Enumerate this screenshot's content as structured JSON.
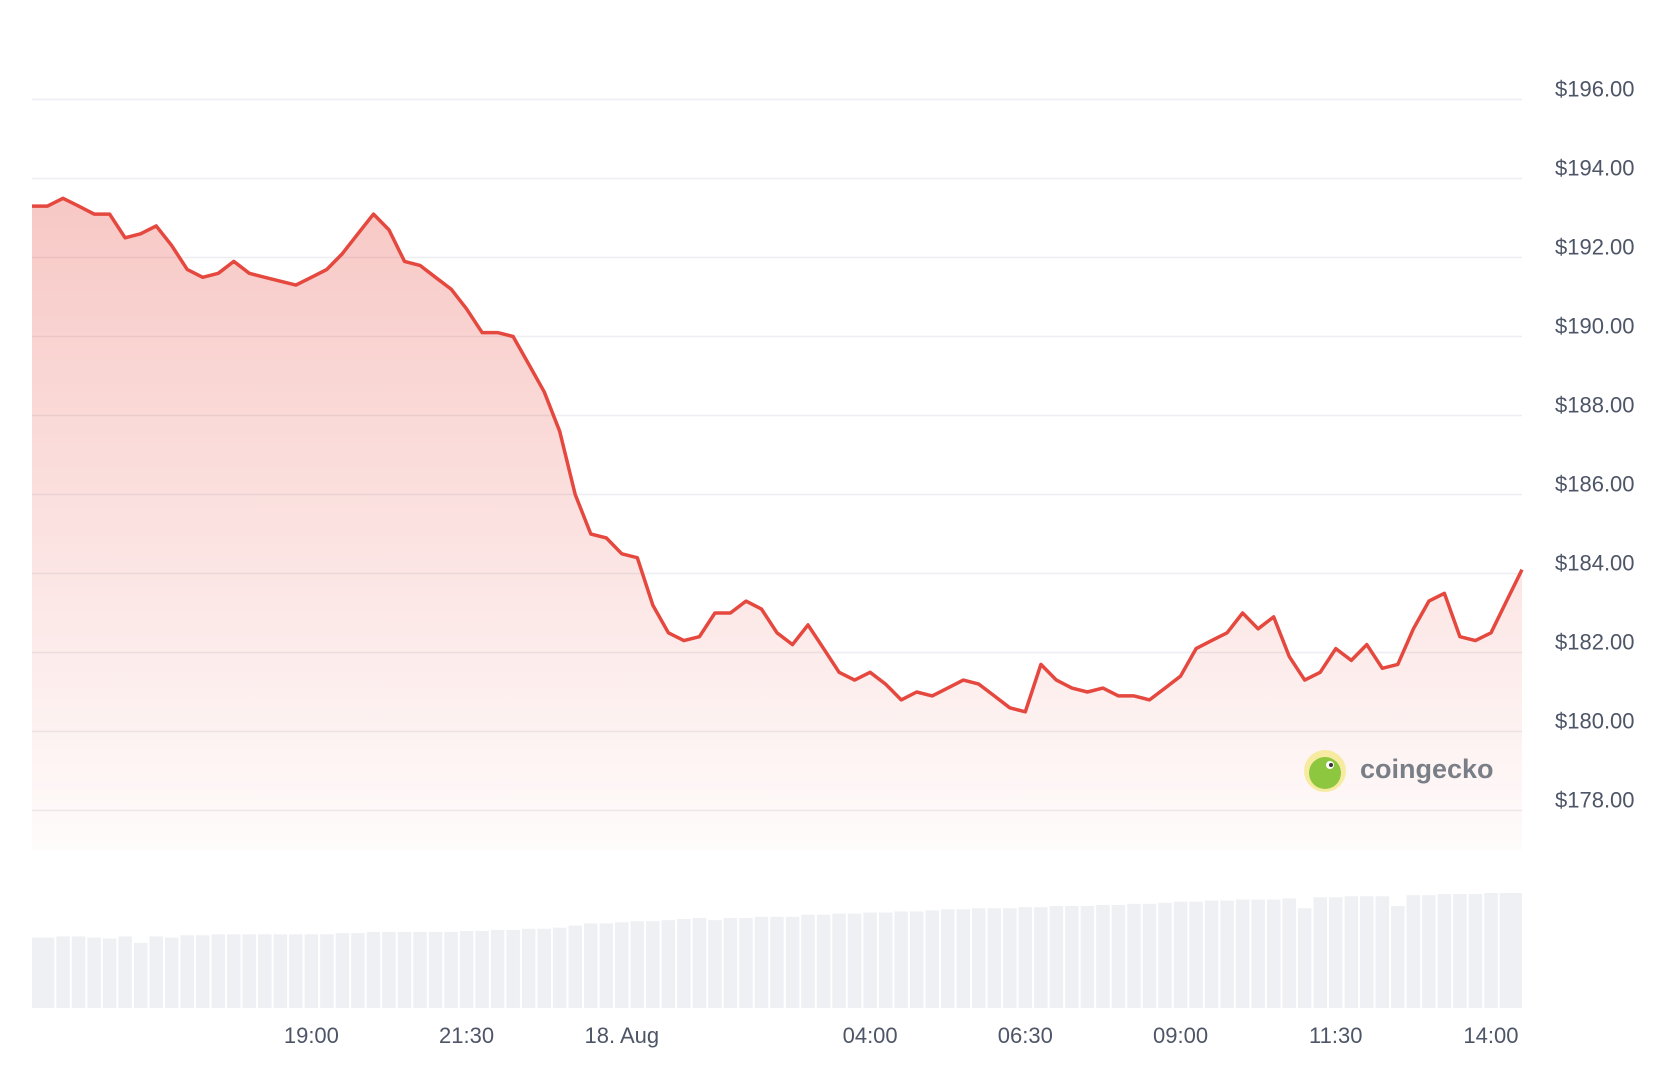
{
  "chart_data": {
    "type": "area",
    "series": [
      {
        "color": "#e5483e",
        "x": [
          14.5,
          14.75,
          15,
          15.25,
          15.5,
          15.75,
          16,
          16.25,
          16.5,
          16.75,
          17,
          17.25,
          17.5,
          17.75,
          18,
          18.25,
          18.5,
          18.75,
          19,
          19.25,
          19.5,
          19.75,
          20,
          20.25,
          20.5,
          20.75,
          21,
          21.25,
          21.5,
          21.75,
          22,
          22.25,
          22.5,
          22.75,
          23,
          23.25,
          23.5,
          23.75,
          24,
          24.25,
          24.5,
          24.75,
          25,
          25.25,
          25.5,
          25.75,
          26,
          26.25,
          26.5,
          26.75,
          27,
          27.25,
          27.5,
          27.75,
          28,
          28.25,
          28.5,
          28.75,
          29,
          29.25,
          29.5,
          29.75,
          30,
          30.25,
          30.5,
          30.75,
          31,
          31.25,
          31.5,
          31.75,
          32,
          32.25,
          32.5,
          32.75,
          33,
          33.25,
          33.5,
          33.75,
          34,
          34.25,
          34.5,
          34.75,
          35,
          35.25,
          35.5,
          35.75,
          36,
          36.25,
          36.5,
          36.75,
          37,
          37.25,
          37.5,
          37.75,
          38,
          38.25,
          38.5
        ],
        "values": [
          193.3,
          193.3,
          193.5,
          193.3,
          193.1,
          193.1,
          192.5,
          192.6,
          192.8,
          192.3,
          191.7,
          191.5,
          191.6,
          191.9,
          191.6,
          191.5,
          191.4,
          191.3,
          191.5,
          191.7,
          192.1,
          192.6,
          193.1,
          192.7,
          191.9,
          191.8,
          191.5,
          191.2,
          190.7,
          190.1,
          190.1,
          190.0,
          189.3,
          188.6,
          187.6,
          186.0,
          185.0,
          184.9,
          184.5,
          184.4,
          183.2,
          182.5,
          182.3,
          182.4,
          183.0,
          183.0,
          183.3,
          183.1,
          182.5,
          182.2,
          182.7,
          182.1,
          181.5,
          181.3,
          181.5,
          181.2,
          180.8,
          181.0,
          180.9,
          181.1,
          181.3,
          181.2,
          180.9,
          180.6,
          180.5,
          181.7,
          181.3,
          181.1,
          181.0,
          181.1,
          180.9,
          180.9,
          180.8,
          181.1,
          181.4,
          182.1,
          182.3,
          182.5,
          183.0,
          182.6,
          182.9,
          181.9,
          181.3,
          181.5,
          182.1,
          181.8,
          182.2,
          181.6,
          181.7,
          182.6,
          183.3,
          183.5,
          182.4,
          182.3,
          182.5,
          183.3,
          184.1
        ],
        "volume": [
          65,
          65,
          66,
          66,
          65,
          64,
          66,
          60,
          66,
          65,
          67,
          67,
          68,
          68,
          68,
          68,
          68,
          68,
          68,
          68,
          69,
          69,
          70,
          70,
          70,
          70,
          70,
          70,
          71,
          71,
          72,
          72,
          73,
          73,
          74,
          76,
          78,
          78,
          79,
          80,
          80,
          81,
          82,
          83,
          81,
          83,
          83,
          84,
          84,
          84,
          86,
          86,
          87,
          87,
          88,
          88,
          89,
          89,
          90,
          91,
          91,
          92,
          92,
          92,
          93,
          93,
          94,
          94,
          94,
          95,
          95,
          96,
          96,
          97,
          98,
          98,
          99,
          99,
          100,
          100,
          100,
          101,
          92,
          102,
          102,
          103,
          103,
          103,
          94,
          104,
          104,
          105,
          105,
          105,
          106,
          106,
          106
        ]
      }
    ],
    "xlim": [
      14.5,
      38.5
    ],
    "xticks": [
      {
        "value": 19,
        "label": "19:00"
      },
      {
        "value": 21.5,
        "label": "21:30"
      },
      {
        "value": 24,
        "label": "18. Aug"
      },
      {
        "value": 28,
        "label": "04:00"
      },
      {
        "value": 30.5,
        "label": "06:30"
      },
      {
        "value": 33,
        "label": "09:00"
      },
      {
        "value": 35.5,
        "label": "11:30"
      },
      {
        "value": 38,
        "label": "14:00"
      }
    ],
    "ylim": [
      177,
      197
    ],
    "yticks": [
      {
        "value": 178,
        "label": "$178.00"
      },
      {
        "value": 180,
        "label": "$180.00"
      },
      {
        "value": 182,
        "label": "$182.00"
      },
      {
        "value": 184,
        "label": "$184.00"
      },
      {
        "value": 186,
        "label": "$186.00"
      },
      {
        "value": 188,
        "label": "$188.00"
      },
      {
        "value": 190,
        "label": "$190.00"
      },
      {
        "value": 192,
        "label": "$192.00"
      },
      {
        "value": 194,
        "label": "$194.00"
      },
      {
        "value": 196,
        "label": "$196.00"
      }
    ],
    "grid": true,
    "watermark": "coingecko"
  }
}
